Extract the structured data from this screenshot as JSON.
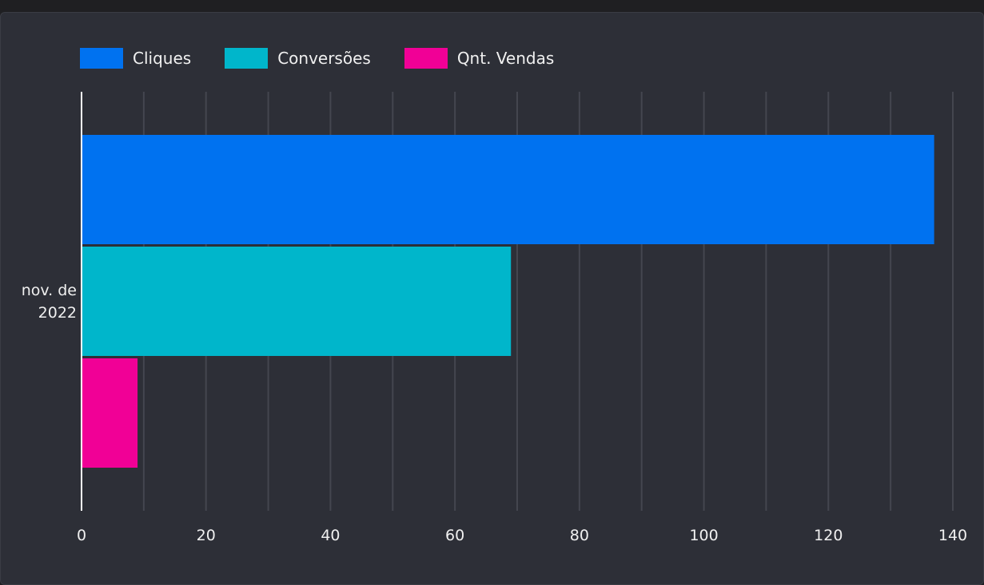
{
  "chart_data": {
    "type": "barh",
    "categories": [
      "nov. de 2022"
    ],
    "series": [
      {
        "name": "Cliques",
        "color": "#0072f0",
        "values": [
          137
        ]
      },
      {
        "name": "Conversões",
        "color": "#00b6cb",
        "values": [
          69
        ]
      },
      {
        "name": "Qnt. Vendas",
        "color": "#f10096",
        "values": [
          9
        ]
      }
    ],
    "xlim": [
      0,
      140
    ],
    "xticks": [
      0,
      20,
      40,
      60,
      80,
      100,
      120,
      140
    ],
    "minor_xticks": [
      10,
      30,
      50,
      70,
      90,
      110,
      130
    ],
    "grid": true,
    "legend": "top"
  }
}
